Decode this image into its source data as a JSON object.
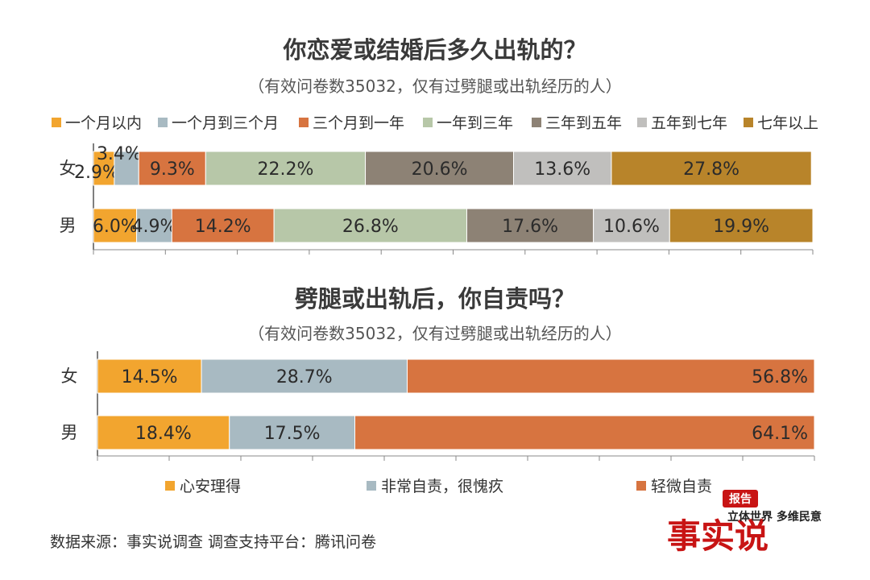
{
  "colors": {
    "c1": "#f2a52f",
    "c2": "#a8bac2",
    "c3": "#d77440",
    "c4": "#b7c7a8",
    "c5": "#8d8275",
    "c6": "#c0bfbd",
    "c7": "#b8842a",
    "seal": "#c81414"
  },
  "chart_data": [
    {
      "type": "bar",
      "orientation": "horizontal-stacked-100",
      "title": "你恋爱或结婚后多久出轨的？",
      "subtitle": "（有效问卷数35032，仅有过劈腿或出轨经历的人）",
      "categories": [
        "女",
        "男"
      ],
      "legend_position": "top",
      "series": [
        {
          "name": "一个月以内",
          "values": [
            2.9,
            6.0
          ],
          "labels": [
            "2.9%",
            "6.0%"
          ]
        },
        {
          "name": "一个月到三个月",
          "values": [
            3.4,
            4.9
          ],
          "labels": [
            "3.4%",
            "4.9%"
          ]
        },
        {
          "name": "三个月到一年",
          "values": [
            9.3,
            14.2
          ],
          "labels": [
            "9.3%",
            "14.2%"
          ]
        },
        {
          "name": "一年到三年",
          "values": [
            22.2,
            26.8
          ],
          "labels": [
            "22.2%",
            "26.8%"
          ]
        },
        {
          "name": "三年到五年",
          "values": [
            20.6,
            17.6
          ],
          "labels": [
            "20.6%",
            "17.6%"
          ]
        },
        {
          "name": "五年到七年",
          "values": [
            13.6,
            10.6
          ],
          "labels": [
            "13.6%",
            "10.6%"
          ]
        },
        {
          "name": "七年以上",
          "values": [
            27.8,
            19.9
          ],
          "labels": [
            "27.8%",
            "19.9%"
          ]
        }
      ]
    },
    {
      "type": "bar",
      "orientation": "horizontal-stacked-100",
      "title": "劈腿或出轨后，你自责吗？",
      "subtitle": "（有效问卷数35032，仅有过劈腿或出轨经历的人）",
      "categories": [
        "女",
        "男"
      ],
      "legend_position": "bottom",
      "series": [
        {
          "name": "心安理得",
          "values": [
            14.5,
            18.4
          ],
          "labels": [
            "14.5%",
            "18.4%"
          ]
        },
        {
          "name": "非常自责，很愧疚",
          "values": [
            28.7,
            17.5
          ],
          "labels": [
            "28.7%",
            "17.5%"
          ]
        },
        {
          "name": "轻微自责",
          "values": [
            56.8,
            64.1
          ],
          "labels": [
            "56.8%",
            "64.1%"
          ]
        }
      ]
    }
  ],
  "footer": {
    "source": "数据来源：事实说调查   调查支持平台：腾讯问卷"
  },
  "watermark": {
    "brand": "事实说",
    "badge": "报告",
    "tagline": "立体世界 多维民意"
  }
}
